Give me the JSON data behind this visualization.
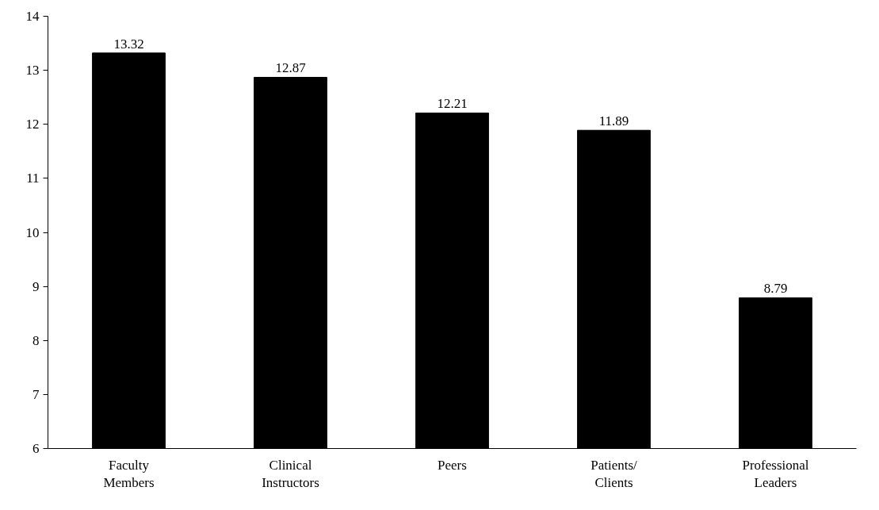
{
  "chart_data": {
    "type": "bar",
    "categories": [
      "Faculty\nMembers",
      "Clinical\nInstructors",
      "Peers",
      "Patients/\nClients",
      "Professional\nLeaders"
    ],
    "values": [
      13.32,
      12.87,
      12.21,
      11.89,
      8.79
    ],
    "color": "#000000",
    "ylim": [
      6,
      14
    ],
    "yticks": [
      6,
      7,
      8,
      9,
      10,
      11,
      12,
      13,
      14
    ],
    "grid": false,
    "data_labels": true
  }
}
